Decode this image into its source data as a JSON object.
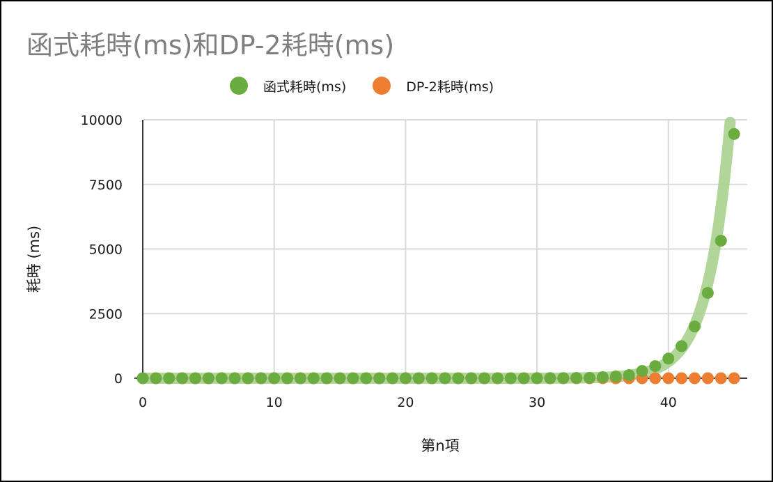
{
  "chart_data": {
    "type": "scatter",
    "title": "函式耗時(ms)和DP-2耗時(ms)",
    "xlabel": "第n項",
    "ylabel": "耗時 (ms)",
    "xlim": [
      0,
      46
    ],
    "ylim": [
      0,
      10000
    ],
    "xticks": [
      0,
      10,
      20,
      30,
      40
    ],
    "yticks": [
      0,
      2500,
      5000,
      7500,
      10000
    ],
    "grid": true,
    "legend_position": "top",
    "series": [
      {
        "name": "函式耗時(ms)",
        "color": "#6aac3f",
        "trendline": "exponential",
        "trendline_color": "#a9d18e",
        "x": [
          0,
          1,
          2,
          3,
          4,
          5,
          6,
          7,
          8,
          9,
          10,
          11,
          12,
          13,
          14,
          15,
          16,
          17,
          18,
          19,
          20,
          21,
          22,
          23,
          24,
          25,
          26,
          27,
          28,
          29,
          30,
          31,
          32,
          33,
          34,
          35,
          36,
          37,
          38,
          39,
          40,
          41,
          42,
          43,
          44,
          45
        ],
        "y": [
          0,
          0,
          0,
          0,
          0,
          0,
          0,
          0,
          0,
          0,
          0,
          0,
          0,
          0,
          0,
          0,
          0,
          0,
          0,
          0,
          0,
          0,
          0,
          0,
          0,
          0,
          0,
          0,
          0,
          1,
          2,
          3,
          5,
          10,
          15,
          40,
          70,
          120,
          280,
          470,
          760,
          1240,
          2000,
          3300,
          5320,
          9450
        ]
      },
      {
        "name": "DP-2耗時(ms)",
        "color": "#ed7d31",
        "x": [
          0,
          1,
          2,
          3,
          4,
          5,
          6,
          7,
          8,
          9,
          10,
          11,
          12,
          13,
          14,
          15,
          16,
          17,
          18,
          19,
          20,
          21,
          22,
          23,
          24,
          25,
          26,
          27,
          28,
          29,
          30,
          31,
          32,
          33,
          34,
          35,
          36,
          37,
          38,
          39,
          40,
          41,
          42,
          43,
          44,
          45
        ],
        "y": [
          0,
          0,
          0,
          0,
          0,
          0,
          0,
          0,
          0,
          0,
          0,
          0,
          0,
          0,
          0,
          0,
          0,
          0,
          0,
          0,
          0,
          0,
          0,
          0,
          0,
          0,
          0,
          0,
          0,
          0,
          0,
          0,
          0,
          0,
          0,
          0,
          0,
          0,
          0,
          0,
          0,
          0,
          0,
          0,
          0,
          0
        ]
      }
    ]
  }
}
